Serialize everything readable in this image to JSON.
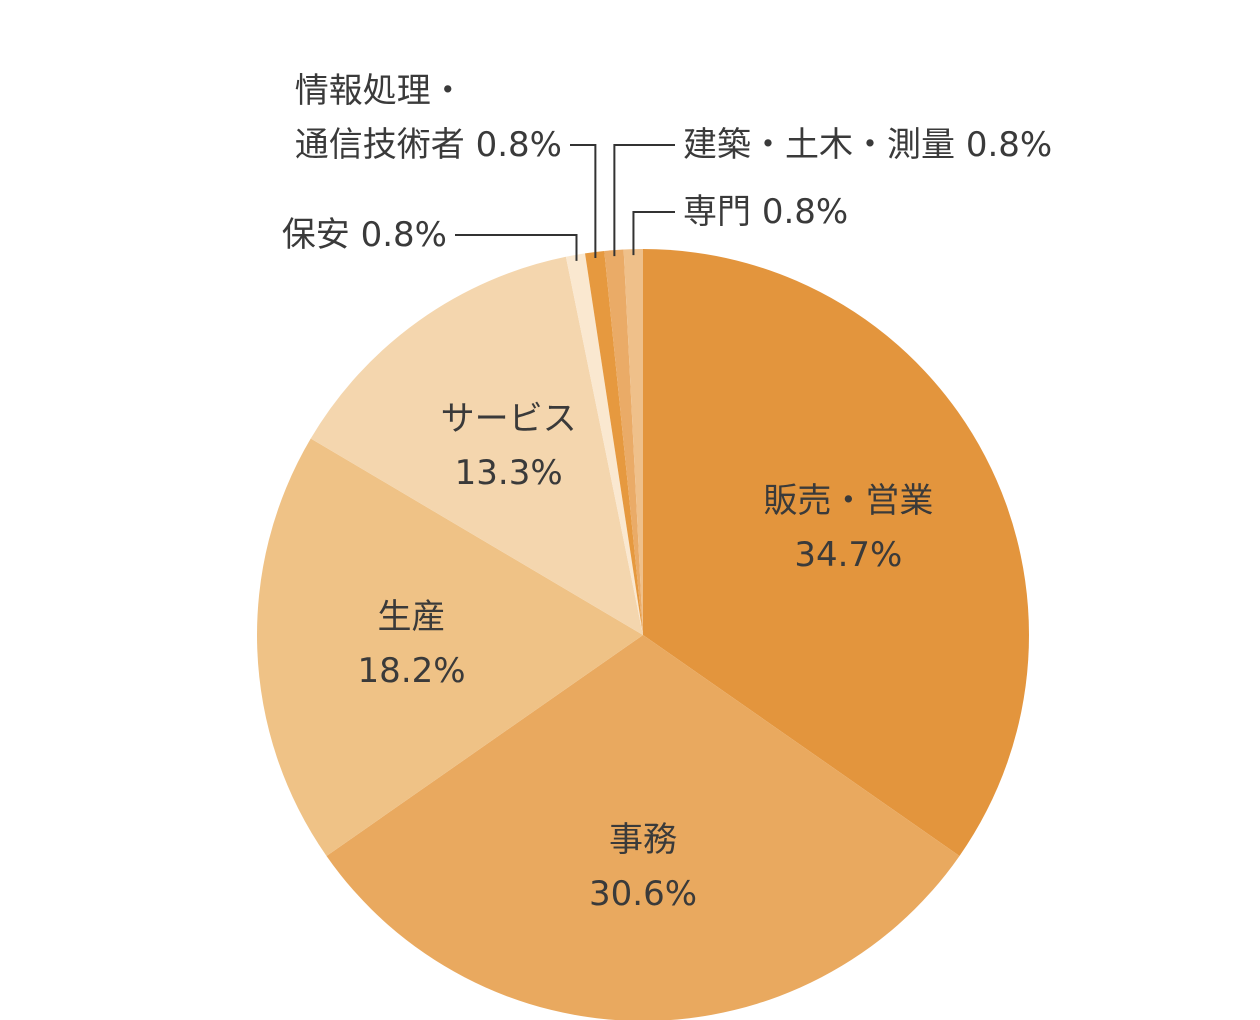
{
  "chart_data": {
    "type": "pie",
    "categories": [
      "販売・営業",
      "事務",
      "生産",
      "サービス",
      "保安",
      "情報処理・\n通信技術者",
      "建築・土木・測量",
      "専門"
    ],
    "values": [
      34.7,
      30.6,
      18.2,
      13.3,
      0.8,
      0.8,
      0.8,
      0.8
    ],
    "value_labels": [
      "34.7%",
      "30.6%",
      "18.2%",
      "13.3%",
      "0.8%",
      "0.8%",
      "0.8%",
      "0.8%"
    ],
    "colors": [
      "#e3953d",
      "#e9a95f",
      "#efc286",
      "#f4d6ae",
      "#fae8d0",
      "#e6993f",
      "#eaab67",
      "#efc08a"
    ]
  }
}
